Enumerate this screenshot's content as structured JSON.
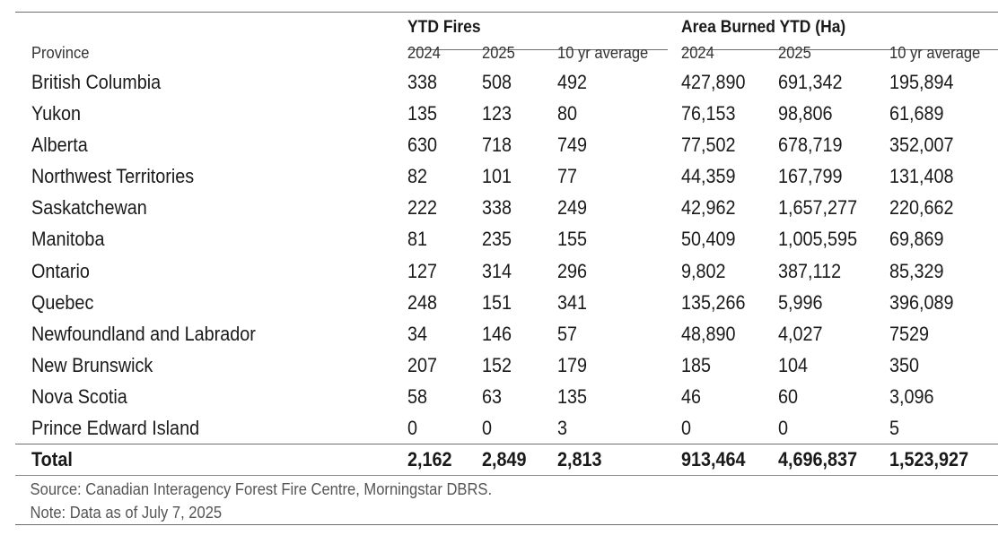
{
  "group_headers": {
    "fires": "YTD Fires",
    "area": "Area Burned YTD (Ha)"
  },
  "sub_headers": [
    "Province",
    "2024",
    "2025",
    "10 yr average",
    "2024",
    "2025",
    "10 yr average"
  ],
  "rows": [
    [
      "British Columbia",
      "338",
      "508",
      "492",
      "427,890",
      "691,342",
      "195,894"
    ],
    [
      "Yukon",
      "135",
      "123",
      "80",
      "76,153",
      "98,806",
      "61,689"
    ],
    [
      "Alberta",
      "630",
      "718",
      "749",
      "77,502",
      "678,719",
      "352,007"
    ],
    [
      "Northwest Territories",
      "82",
      "101",
      "77",
      "44,359",
      "167,799",
      "131,408"
    ],
    [
      "Saskatchewan",
      "222",
      "338",
      "249",
      "42,962",
      "1,657,277",
      "220,662"
    ],
    [
      "Manitoba",
      "81",
      "235",
      "155",
      "50,409",
      "1,005,595",
      "69,869"
    ],
    [
      "Ontario",
      "127",
      "314",
      "296",
      "9,802",
      "387,112",
      "85,329"
    ],
    [
      "Quebec",
      "248",
      "151",
      "341",
      "135,266",
      "5,996",
      "396,089"
    ],
    [
      "Newfoundland and Labrador",
      "34",
      "146",
      "57",
      "48,890",
      "4,027",
      "7529"
    ],
    [
      "New Brunswick",
      "207",
      "152",
      "179",
      "185",
      "104",
      "350"
    ],
    [
      "Nova Scotia",
      "58",
      "63",
      "135",
      "46",
      "60",
      "3,096"
    ],
    [
      "Prince Edward Island",
      "0",
      "0",
      "3",
      "0",
      "0",
      "5"
    ]
  ],
  "total": [
    "Total",
    "2,162",
    "2,849",
    "2,813",
    "913,464",
    "4,696,837",
    "1,523,927"
  ],
  "source_note": "Source: Canadian Interagency Forest Fire Centre, Morningstar DBRS.",
  "date_note": "Note: Data as of July 7, 2025"
}
